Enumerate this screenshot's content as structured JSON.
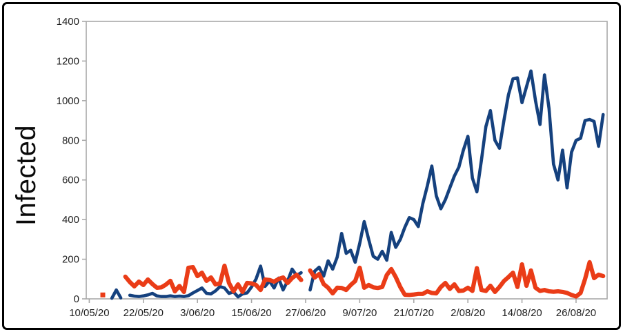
{
  "frame": {
    "border_color": "#000000",
    "background": "#ffffff"
  },
  "colors": {
    "axis": "#a9a9a9",
    "tick_text": "#1f1f1f",
    "series_blue": "#15417e",
    "series_orange": "#ea3c17"
  },
  "chart_data": {
    "type": "line",
    "title": "",
    "xlabel": "",
    "ylabel": "Infected",
    "ylim": [
      0,
      1400
    ],
    "y_tick_interval": 200,
    "y_tick_labels": [
      "0",
      "200",
      "400",
      "600",
      "800",
      "1000",
      "1200",
      "1400"
    ],
    "grid": "none",
    "legend": "none",
    "x_unit": "days since 10/05/20, one point per day",
    "x_start_date": "10/05/20",
    "x_domain_days": [
      0,
      115
    ],
    "x_ticks": [
      {
        "day": 0,
        "label": "10/05/20"
      },
      {
        "day": 12,
        "label": "22/05/20"
      },
      {
        "day": 24,
        "label": "3/06/20"
      },
      {
        "day": 36,
        "label": "15/06/20"
      },
      {
        "day": 48,
        "label": "27/06/20"
      },
      {
        "day": 60,
        "label": "9/07/20"
      },
      {
        "day": 72,
        "label": "21/07/20"
      },
      {
        "day": 84,
        "label": "2/08/20"
      },
      {
        "day": 96,
        "label": "14/08/20"
      },
      {
        "day": 108,
        "label": "26/08/20"
      }
    ],
    "series": [
      {
        "name": "series-blue",
        "color": "#15417e",
        "width": 4.6,
        "values": [
          null,
          null,
          null,
          null,
          null,
          3,
          45,
          5,
          null,
          18,
          14,
          12,
          15,
          20,
          28,
          15,
          12,
          12,
          15,
          12,
          14,
          12,
          16,
          30,
          42,
          55,
          28,
          25,
          40,
          62,
          55,
          28,
          35,
          10,
          25,
          30,
          60,
          100,
          165,
          63,
          90,
          55,
          105,
          45,
          90,
          150,
          118,
          132,
          null,
          45,
          140,
          160,
          115,
          192,
          150,
          210,
          330,
          230,
          245,
          185,
          280,
          390,
          300,
          215,
          200,
          240,
          195,
          335,
          260,
          300,
          360,
          410,
          400,
          365,
          480,
          570,
          670,
          520,
          455,
          500,
          560,
          620,
          665,
          750,
          820,
          610,
          540,
          700,
          870,
          950,
          800,
          760,
          900,
          1030,
          1110,
          1115,
          990,
          1070,
          1150,
          1000,
          880,
          1130,
          960,
          680,
          600,
          750,
          560,
          740,
          800,
          810,
          900,
          905,
          895,
          770,
          930
        ]
      },
      {
        "name": "series-orange",
        "color": "#ea3c17",
        "width": 6.2,
        "values": [
          null,
          null,
          null,
          20,
          null,
          null,
          null,
          null,
          112,
          85,
          63,
          87,
          70,
          98,
          75,
          56,
          58,
          72,
          91,
          38,
          65,
          35,
          157,
          160,
          115,
          132,
          91,
          108,
          73,
          78,
          167,
          80,
          38,
          73,
          35,
          80,
          78,
          70,
          45,
          98,
          95,
          87,
          100,
          108,
          80,
          105,
          122,
          95,
          null,
          143,
          108,
          125,
          75,
          56,
          28,
          56,
          55,
          45,
          70,
          90,
          157,
          56,
          70,
          58,
          55,
          60,
          120,
          150,
          110,
          60,
          21,
          20,
          22,
          25,
          25,
          38,
          30,
          28,
          60,
          80,
          50,
          73,
          40,
          42,
          56,
          40,
          155,
          45,
          40,
          66,
          35,
          60,
          90,
          110,
          132,
          60,
          174,
          66,
          143,
          56,
          40,
          45,
          38,
          36,
          38,
          35,
          30,
          20,
          12,
          30,
          100,
          185,
          105,
          122,
          115
        ]
      }
    ]
  }
}
